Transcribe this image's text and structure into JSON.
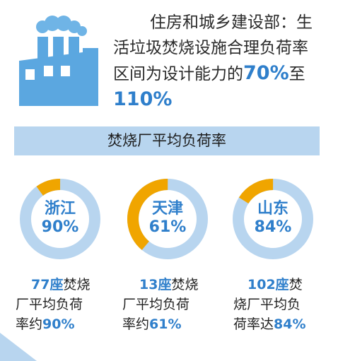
{
  "headline": {
    "line1": "住房和城乡建设部：生",
    "line2": "活垃圾焚烧设施合理负荷率",
    "line3_pre": "区间为设计能力的",
    "line3_hl": "70%",
    "line3_post": "至",
    "line4_hl": "110%"
  },
  "banner_title": "焚烧厂平均负荷率",
  "colors": {
    "accent": "#f0a500",
    "ring_base": "#b8d5ef",
    "text_blue": "#2f7fcb",
    "factory": "#5ba7e0"
  },
  "provinces": [
    {
      "name": "浙江",
      "rate_label": "90%",
      "load_fraction": 0.9,
      "count": "77",
      "unit": "座",
      "stat_l1": "焚烧",
      "stat_l2": "厂平均负荷",
      "stat_l3": "率约",
      "stat_rate": "90%"
    },
    {
      "name": "天津",
      "rate_label": "61%",
      "load_fraction": 0.61,
      "count": "13",
      "unit": "座",
      "stat_l1": "焚烧",
      "stat_l2": "厂平均负荷",
      "stat_l3": "率约",
      "stat_rate": "61%"
    },
    {
      "name": "山东",
      "rate_label": "84%",
      "load_fraction": 0.84,
      "count": "102",
      "unit": "座",
      "stat_l1": "焚",
      "stat_l2": "烧厂平均负",
      "stat_l3": "荷率达",
      "stat_rate": "84%"
    }
  ]
}
